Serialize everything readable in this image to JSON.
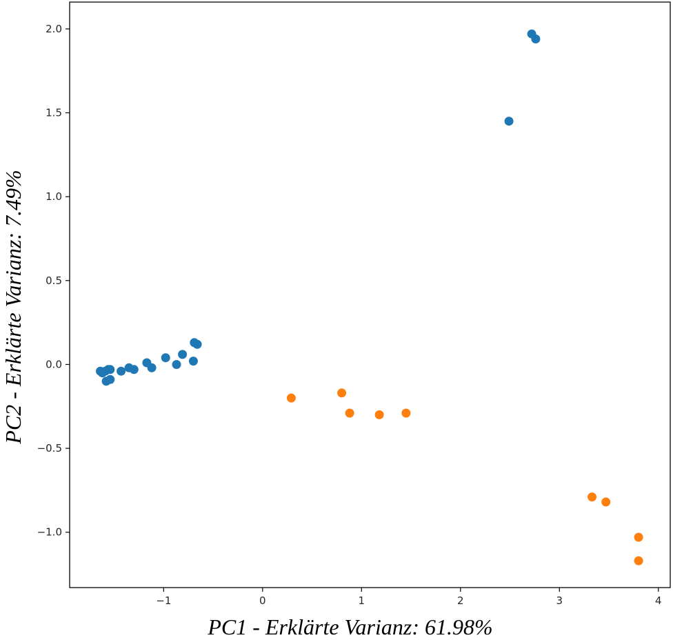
{
  "chart_data": {
    "type": "scatter",
    "title": "",
    "xlabel": "PC1 - Erklärte Varianz: 61.98%",
    "ylabel": "PC2 - Erklärte Varianz: 7.49%",
    "xlim": [
      -1.95,
      4.12
    ],
    "ylim": [
      -1.33,
      2.16
    ],
    "xticks": [
      -1,
      0,
      1,
      2,
      3,
      4
    ],
    "xtick_labels": [
      "−1",
      "0",
      "1",
      "2",
      "3",
      "4"
    ],
    "yticks": [
      -1.0,
      -0.5,
      0.0,
      0.5,
      1.0,
      1.5,
      2.0
    ],
    "ytick_labels": [
      "−1.0",
      "−0.5",
      "0.0",
      "0.5",
      "1.0",
      "1.5",
      "2.0"
    ],
    "grid": false,
    "legend": "none",
    "series": [
      {
        "color": "#1f77b4",
        "points": [
          [
            -1.64,
            -0.04
          ],
          [
            -1.62,
            -0.05
          ],
          [
            -1.59,
            -0.04
          ],
          [
            -1.56,
            -0.03
          ],
          [
            -1.54,
            -0.03
          ],
          [
            -1.58,
            -0.1
          ],
          [
            -1.54,
            -0.09
          ],
          [
            -1.43,
            -0.04
          ],
          [
            -1.35,
            -0.02
          ],
          [
            -1.3,
            -0.03
          ],
          [
            -1.17,
            0.01
          ],
          [
            -1.12,
            -0.02
          ],
          [
            -0.98,
            0.04
          ],
          [
            -0.87,
            0.0
          ],
          [
            -0.81,
            0.06
          ],
          [
            -0.7,
            0.02
          ],
          [
            -0.69,
            0.13
          ],
          [
            -0.66,
            0.12
          ],
          [
            2.49,
            1.45
          ],
          [
            2.72,
            1.97
          ],
          [
            2.76,
            1.94
          ]
        ]
      },
      {
        "color": "#ff7f0e",
        "points": [
          [
            0.29,
            -0.2
          ],
          [
            0.8,
            -0.17
          ],
          [
            0.88,
            -0.29
          ],
          [
            1.18,
            -0.3
          ],
          [
            1.45,
            -0.29
          ],
          [
            3.33,
            -0.79
          ],
          [
            3.47,
            -0.82
          ],
          [
            3.8,
            -1.03
          ],
          [
            3.8,
            -1.17
          ]
        ]
      }
    ]
  }
}
